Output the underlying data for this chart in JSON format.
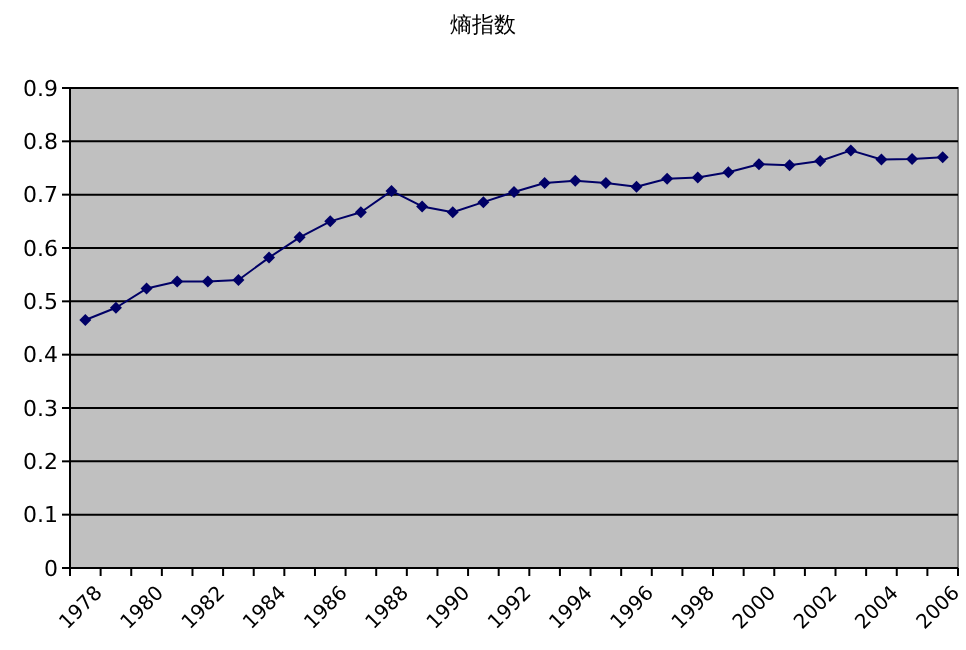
{
  "chart_data": {
    "type": "line",
    "title": "熵指数",
    "categories": [
      "1978",
      null,
      "1980",
      null,
      "1982",
      null,
      "1984",
      null,
      "1986",
      null,
      "1988",
      null,
      "1990",
      null,
      "1992",
      null,
      "1994",
      null,
      "1996",
      null,
      "1998",
      null,
      "2000",
      null,
      "2002",
      null,
      "2004",
      null,
      "2006"
    ],
    "series": [
      {
        "color": "#000066",
        "values": [
          0.465,
          0.488,
          0.524,
          0.537,
          0.537,
          0.54,
          0.582,
          0.62,
          0.65,
          0.667,
          0.707,
          0.678,
          0.667,
          0.686,
          0.705,
          0.722,
          0.726,
          0.722,
          0.715,
          0.73,
          0.732,
          0.742,
          0.757,
          0.755,
          0.763,
          0.783,
          0.766,
          0.767,
          0.77
        ]
      }
    ],
    "ylim": [
      0,
      0.9
    ],
    "yticks": [
      0,
      0.1,
      0.2,
      0.3,
      0.4,
      0.5,
      0.6,
      0.7,
      0.8,
      0.9
    ],
    "grid": "y",
    "marker": "diamond",
    "line_style": "solid"
  }
}
